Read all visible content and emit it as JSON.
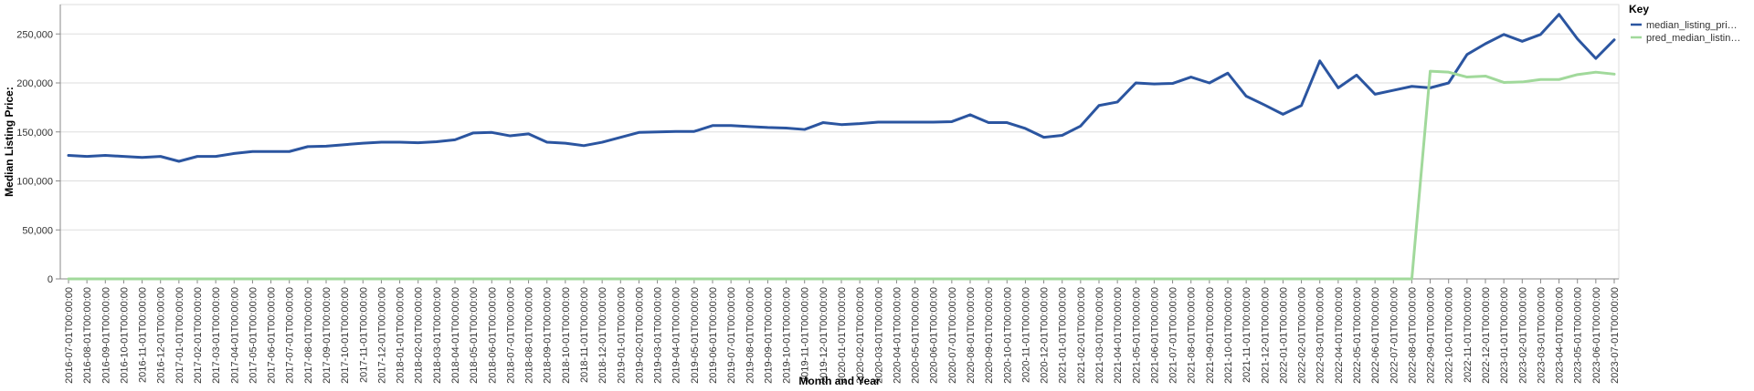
{
  "chart_data": {
    "type": "line",
    "xlabel": "Month and Year",
    "ylabel": "Median Listing Price:",
    "ylim": [
      0,
      280000
    ],
    "yticks": [
      0,
      50000,
      100000,
      150000,
      200000,
      250000
    ],
    "ytick_labels": [
      "0",
      "50,000",
      "100,000",
      "150,000",
      "200,000",
      "250,000"
    ],
    "grid": true,
    "legend": {
      "title": "Key",
      "position": "top-right"
    },
    "x": [
      "2016-07-01T00:00:00",
      "2016-08-01T00:00:00",
      "2016-09-01T00:00:00",
      "2016-10-01T00:00:00",
      "2016-11-01T00:00:00",
      "2016-12-01T00:00:00",
      "2017-01-01T00:00:00",
      "2017-02-01T00:00:00",
      "2017-03-01T00:00:00",
      "2017-04-01T00:00:00",
      "2017-05-01T00:00:00",
      "2017-06-01T00:00:00",
      "2017-07-01T00:00:00",
      "2017-08-01T00:00:00",
      "2017-09-01T00:00:00",
      "2017-10-01T00:00:00",
      "2017-11-01T00:00:00",
      "2017-12-01T00:00:00",
      "2018-01-01T00:00:00",
      "2018-02-01T00:00:00",
      "2018-03-01T00:00:00",
      "2018-04-01T00:00:00",
      "2018-05-01T00:00:00",
      "2018-06-01T00:00:00",
      "2018-07-01T00:00:00",
      "2018-08-01T00:00:00",
      "2018-09-01T00:00:00",
      "2018-10-01T00:00:00",
      "2018-11-01T00:00:00",
      "2018-12-01T00:00:00",
      "2019-01-01T00:00:00",
      "2019-02-01T00:00:00",
      "2019-03-01T00:00:00",
      "2019-04-01T00:00:00",
      "2019-05-01T00:00:00",
      "2019-06-01T00:00:00",
      "2019-07-01T00:00:00",
      "2019-08-01T00:00:00",
      "2019-09-01T00:00:00",
      "2019-10-01T00:00:00",
      "2019-11-01T00:00:00",
      "2019-12-01T00:00:00",
      "2020-01-01T00:00:00",
      "2020-02-01T00:00:00",
      "2020-03-01T00:00:00",
      "2020-04-01T00:00:00",
      "2020-05-01T00:00:00",
      "2020-06-01T00:00:00",
      "2020-07-01T00:00:00",
      "2020-08-01T00:00:00",
      "2020-09-01T00:00:00",
      "2020-10-01T00:00:00",
      "2020-11-01T00:00:00",
      "2020-12-01T00:00:00",
      "2021-01-01T00:00:00",
      "2021-02-01T00:00:00",
      "2021-03-01T00:00:00",
      "2021-04-01T00:00:00",
      "2021-05-01T00:00:00",
      "2021-06-01T00:00:00",
      "2021-07-01T00:00:00",
      "2021-08-01T00:00:00",
      "2021-09-01T00:00:00",
      "2021-10-01T00:00:00",
      "2021-11-01T00:00:00",
      "2021-12-01T00:00:00",
      "2022-01-01T00:00:00",
      "2022-02-01T00:00:00",
      "2022-03-01T00:00:00",
      "2022-04-01T00:00:00",
      "2022-05-01T00:00:00",
      "2022-06-01T00:00:00",
      "2022-07-01T00:00:00",
      "2022-08-01T00:00:00",
      "2022-09-01T00:00:00",
      "2022-10-01T00:00:00",
      "2022-11-01T00:00:00",
      "2022-12-01T00:00:00",
      "2023-01-01T00:00:00",
      "2023-02-01T00:00:00",
      "2023-03-01T00:00:00",
      "2023-04-01T00:00:00",
      "2023-05-01T00:00:00",
      "2023-06-01T00:00:00",
      "2023-07-01T00:00:00"
    ],
    "series": [
      {
        "name": "median_listing_pri…",
        "color": "#2b55a0",
        "values": [
          126000,
          125000,
          126000,
          125000,
          124000,
          125000,
          120000,
          125000,
          125000,
          128000,
          130000,
          130000,
          130000,
          135000,
          135500,
          137000,
          138500,
          139500,
          139500,
          139000,
          140000,
          142000,
          149000,
          149500,
          146000,
          148000,
          139500,
          138500,
          136000,
          139500,
          144500,
          149500,
          150000,
          150500,
          150500,
          156500,
          156500,
          155500,
          154500,
          154000,
          152500,
          159500,
          157500,
          158500,
          160000,
          160000,
          160000,
          160000,
          160500,
          167500,
          159500,
          159500,
          153500,
          144500,
          146500,
          156000,
          177000,
          180500,
          200000,
          199000,
          199500,
          206000,
          200000,
          210000,
          186500,
          177500,
          168000,
          177000,
          222500,
          195000,
          208000,
          188500,
          192500,
          196500,
          195000,
          200000,
          229000,
          240000,
          249500,
          242500,
          249500,
          270000,
          245000,
          225000,
          244000
        ]
      },
      {
        "name": "pred_median_listin…",
        "color": "#a1d99b",
        "values": [
          0,
          0,
          0,
          0,
          0,
          0,
          0,
          0,
          0,
          0,
          0,
          0,
          0,
          0,
          0,
          0,
          0,
          0,
          0,
          0,
          0,
          0,
          0,
          0,
          0,
          0,
          0,
          0,
          0,
          0,
          0,
          0,
          0,
          0,
          0,
          0,
          0,
          0,
          0,
          0,
          0,
          0,
          0,
          0,
          0,
          0,
          0,
          0,
          0,
          0,
          0,
          0,
          0,
          0,
          0,
          0,
          0,
          0,
          0,
          0,
          0,
          0,
          0,
          0,
          0,
          0,
          0,
          0,
          0,
          0,
          0,
          0,
          0,
          0,
          212000,
          211000,
          206000,
          207000,
          200500,
          201000,
          203500,
          203500,
          208500,
          211000,
          209000
        ]
      }
    ]
  }
}
